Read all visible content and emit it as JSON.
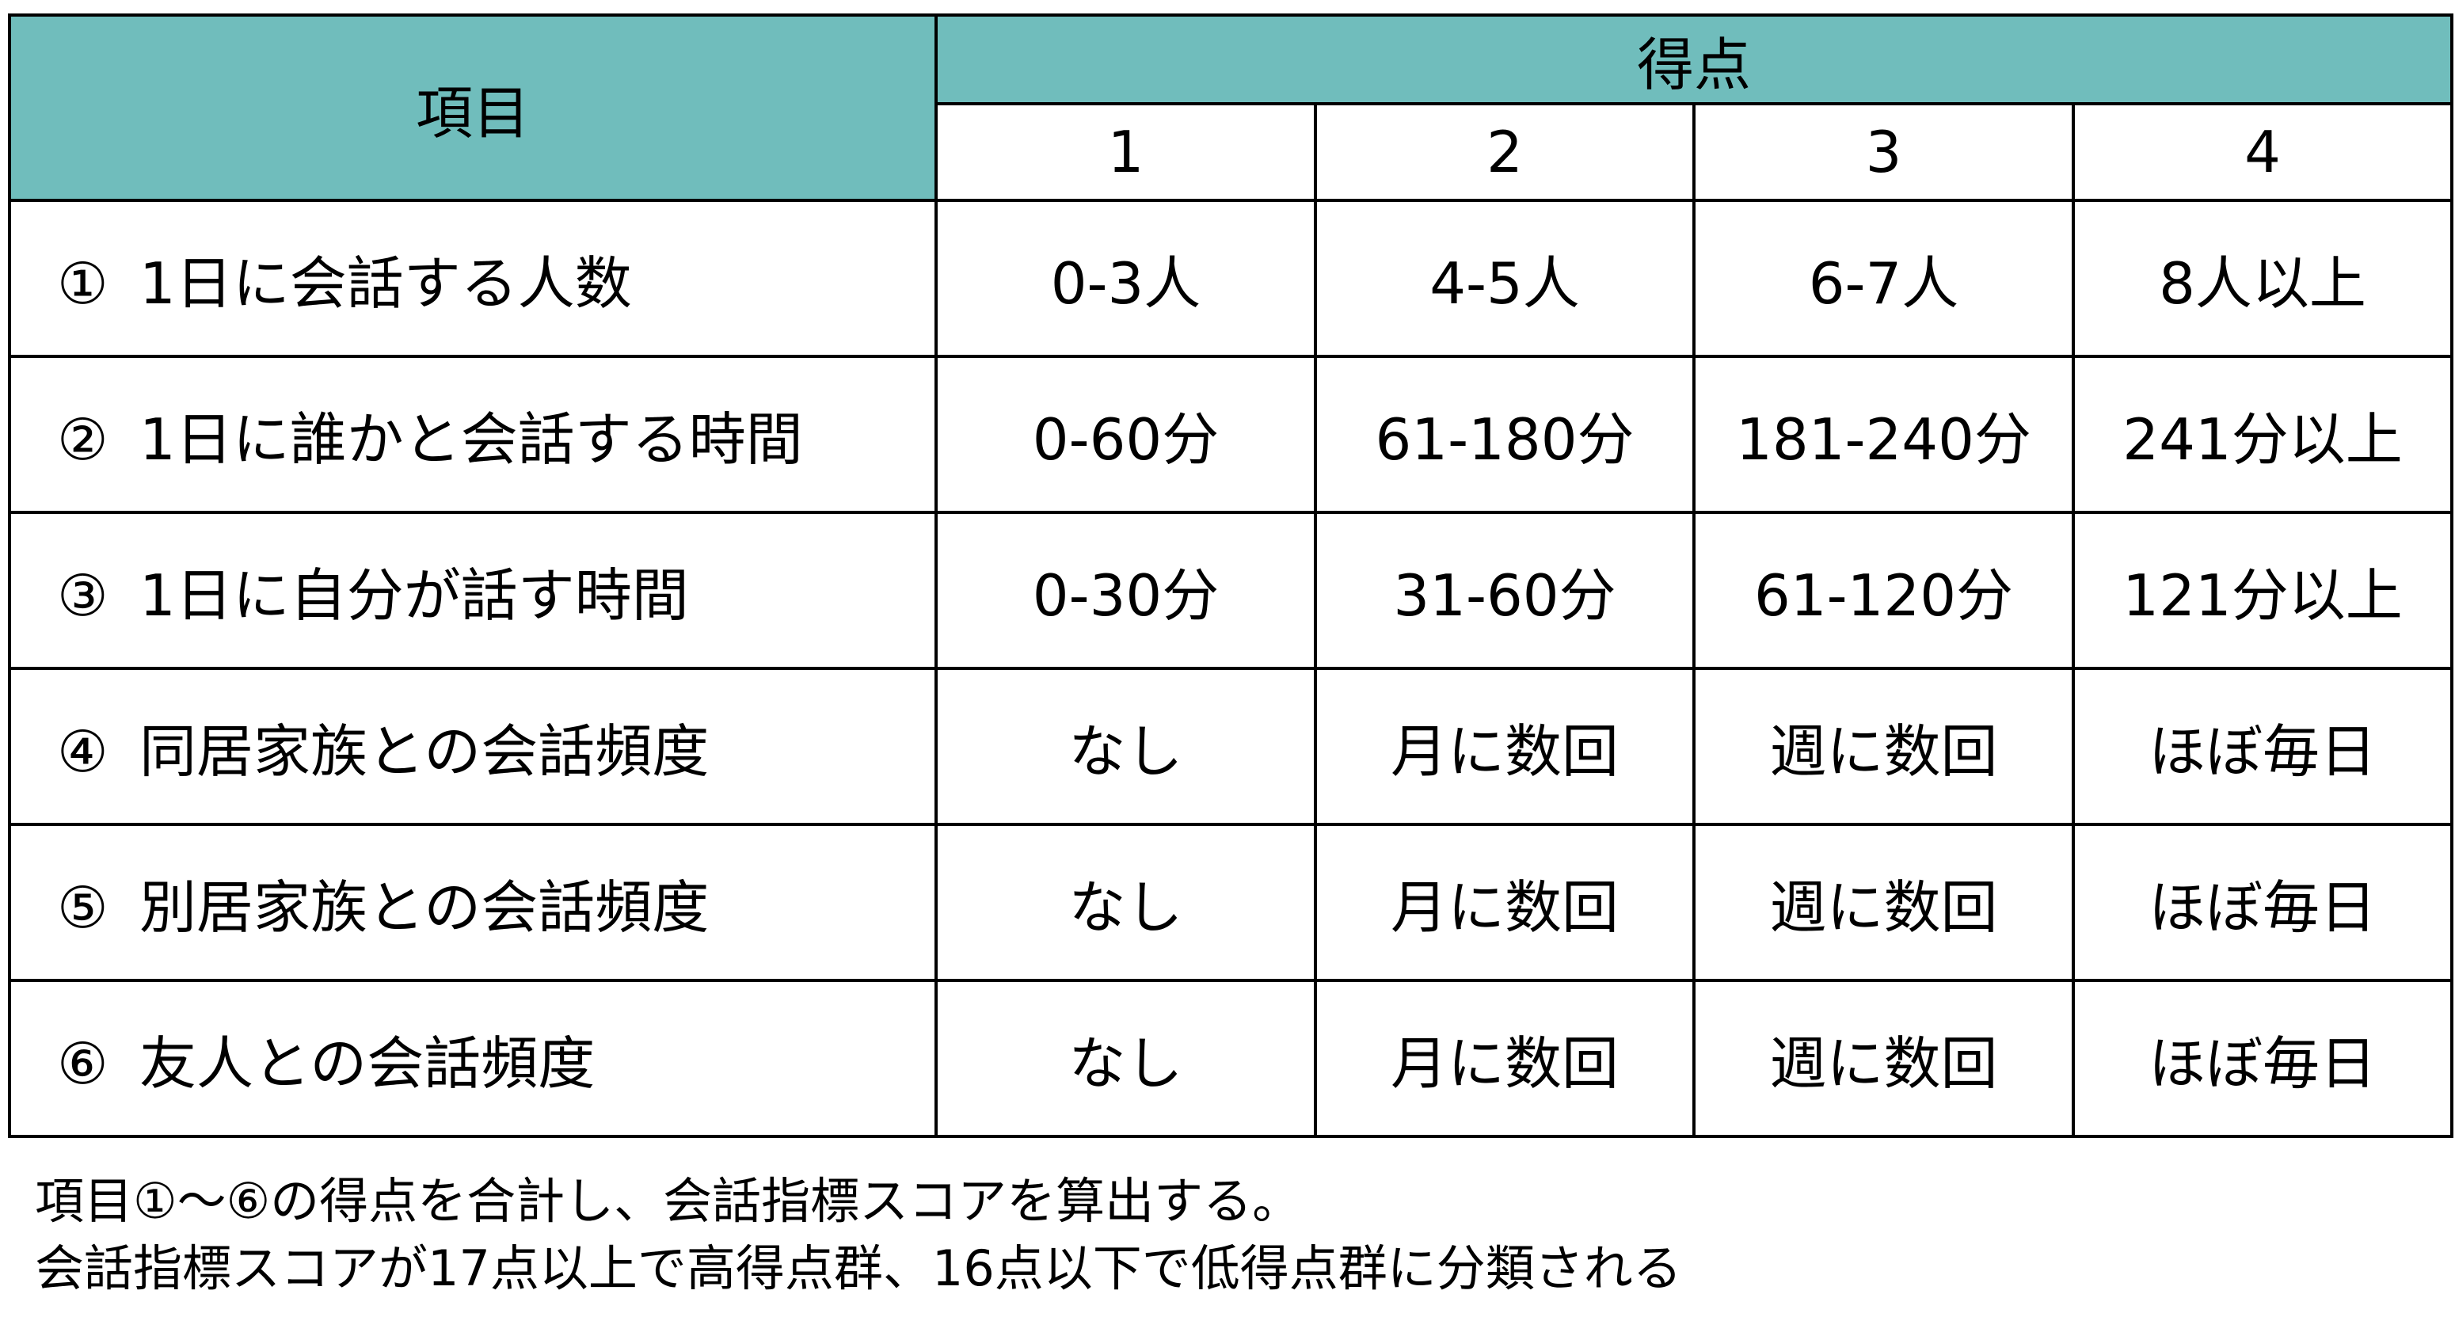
{
  "header": {
    "item_label": "項目",
    "score_label": "得点",
    "score_levels": [
      "1",
      "2",
      "3",
      "4"
    ]
  },
  "rows": [
    {
      "num": "①",
      "item": "1日に会話する人数",
      "cells": [
        "0-3人",
        "4-5人",
        "6-7人",
        "8人以上"
      ]
    },
    {
      "num": "②",
      "item": "1日に誰かと会話する時間",
      "cells": [
        "0-60分",
        "61-180分",
        "181-240分",
        "241分以上"
      ]
    },
    {
      "num": "③",
      "item": "1日に自分が話す時間",
      "cells": [
        "0-30分",
        "31-60分",
        "61-120分",
        "121分以上"
      ]
    },
    {
      "num": "④",
      "item": "同居家族との会話頻度",
      "cells": [
        "なし",
        "月に数回",
        "週に数回",
        "ほぼ毎日"
      ]
    },
    {
      "num": "⑤",
      "item": "別居家族との会話頻度",
      "cells": [
        "なし",
        "月に数回",
        "週に数回",
        "ほぼ毎日"
      ]
    },
    {
      "num": "⑥",
      "item": "友人との会話頻度",
      "cells": [
        "なし",
        "月に数回",
        "週に数回",
        "ほぼ毎日"
      ]
    }
  ],
  "notes": [
    "項目①～⑥の得点を合計し、会話指標スコアを算出する。",
    "会話指標スコアが17点以上で高得点群、16点以下で低得点群に分類される"
  ],
  "colors": {
    "header_bg": "#70BDBC",
    "border": "#000000"
  }
}
